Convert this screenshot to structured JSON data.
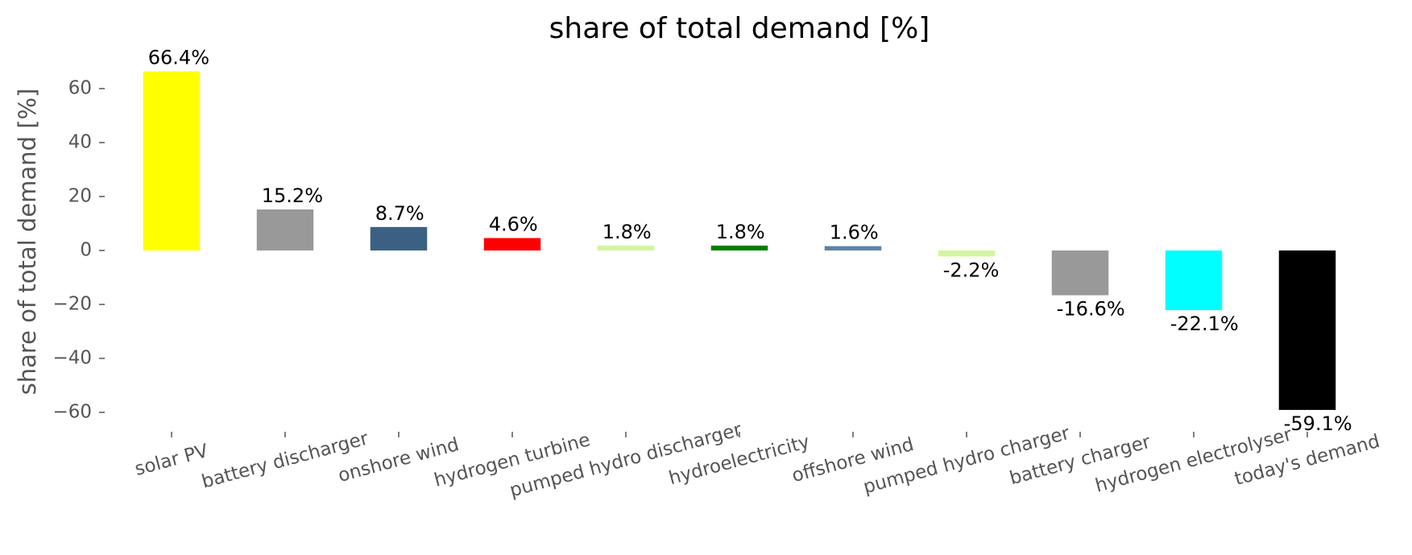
{
  "chart_data": {
    "type": "bar",
    "title": "share of total demand [%]",
    "y_label": "share of total demand [%]",
    "categories": [
      "solar PV",
      "battery discharger",
      "onshore wind",
      "hydrogen turbine",
      "pumped hydro discharger",
      "hydroelectricity",
      "offshore wind",
      "pumped hydro charger",
      "battery charger",
      "hydrogen electrolyser",
      "today's demand"
    ],
    "values": [
      66.4,
      15.2,
      8.7,
      4.6,
      1.8,
      1.8,
      1.6,
      -2.2,
      -16.6,
      -22.1,
      -59.1
    ],
    "value_labels": [
      "66.4%",
      "15.2%",
      "8.7%",
      "4.6%",
      "1.8%",
      "1.8%",
      "1.6%",
      "-2.2%",
      "-16.6%",
      "-22.1%",
      "-59.1%"
    ],
    "colors": [
      "#ffff00",
      "#999999",
      "#3b6182",
      "#ff0000",
      "#d4f5a0",
      "#008000",
      "#5b84a6",
      "#d4f5a0",
      "#999999",
      "#00ffff",
      "#000000"
    ],
    "ylim": [
      -66,
      70
    ],
    "yticks": [
      {
        "value": -60,
        "label": "−60"
      },
      {
        "value": -40,
        "label": "−40"
      },
      {
        "value": -20,
        "label": "−20"
      },
      0,
      20,
      40,
      60
    ],
    "grid": false
  }
}
